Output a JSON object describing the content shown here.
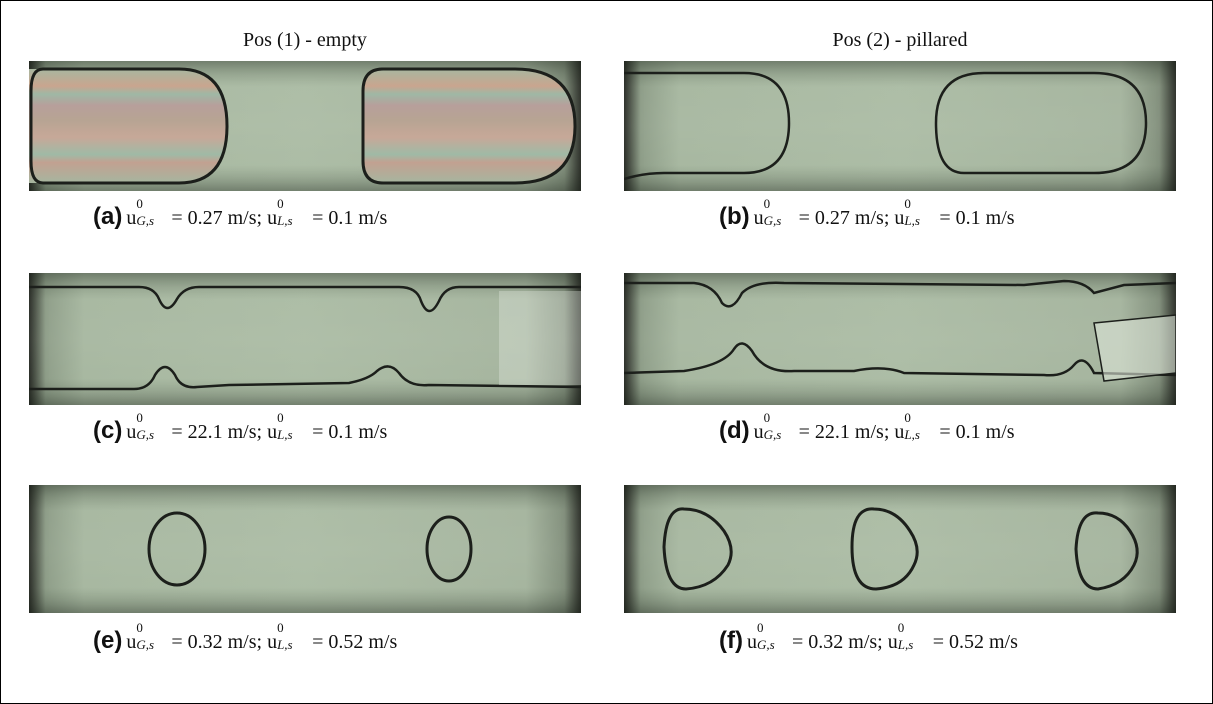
{
  "figure": {
    "columns": [
      {
        "header": "Pos (1) - empty"
      },
      {
        "header": "Pos (2) - pillared"
      }
    ],
    "panels": [
      {
        "label": "(a)",
        "var": "u",
        "sup": "0",
        "sub1": "G,s",
        "v1": "= 0.27 m/s;",
        "sub2": "L,s",
        "v2": "= 0.1 m/s"
      },
      {
        "label": "(b)",
        "var": "u",
        "sup": "0",
        "sub1": "G,s",
        "v1": "= 0.27 m/s;",
        "sub2": "L,s",
        "v2": "= 0.1 m/s"
      },
      {
        "label": "(c)",
        "var": "u",
        "sup": "0",
        "sub1": "G,s",
        "v1": "= 22.1 m/s;",
        "sub2": "L,s",
        "v2": "= 0.1 m/s"
      },
      {
        "label": "(d)",
        "var": "u",
        "sup": "0",
        "sub1": "G,s",
        "v1": "= 22.1 m/s;",
        "sub2": "L,s",
        "v2": "= 0.1 m/s"
      },
      {
        "label": "(e)",
        "var": "u",
        "sup": "0",
        "sub1": "G,s",
        "v1": "= 0.32 m/s;",
        "sub2": "L,s",
        "v2": "= 0.52 m/s"
      },
      {
        "label": "(f)",
        "var": "u",
        "sup": "0",
        "sub1": "G,s",
        "v1": "= 0.32 m/s;",
        "sub2": "L,s",
        "v2": "= 0.52 m/s"
      }
    ]
  }
}
